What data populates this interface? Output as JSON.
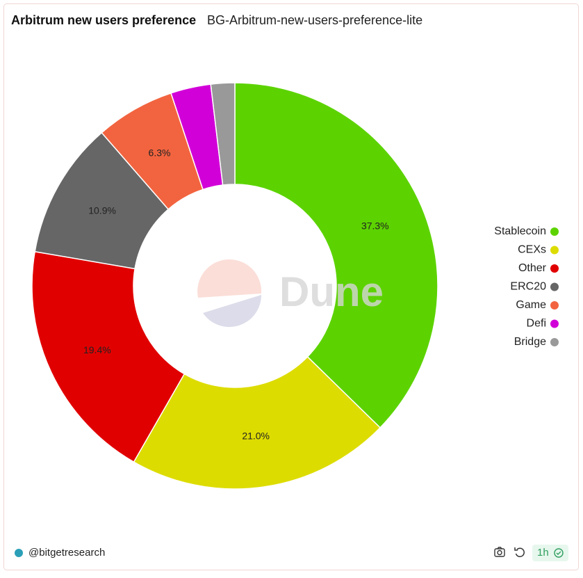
{
  "chart_data": {
    "type": "pie",
    "title": "Arbitrum new users preference",
    "subtitle": "BG-Arbitrum-new-users-preference-lite",
    "categories": [
      "Stablecoin",
      "CEXs",
      "Other",
      "ERC20",
      "Game",
      "Defi",
      "Bridge"
    ],
    "values": [
      37.3,
      21.0,
      19.4,
      10.9,
      6.3,
      3.2,
      1.9
    ],
    "value_labels": [
      "37.3%",
      "21.0%",
      "19.4%",
      "10.9%",
      "6.3%",
      null,
      null
    ],
    "colors": [
      "#5cd300",
      "#dddc00",
      "#e10000",
      "#666666",
      "#f2643f",
      "#d200d8",
      "#999999"
    ],
    "legend": "right",
    "watermark": "Dune"
  },
  "footer": {
    "author": "@bitgetresearch",
    "refresh": "1h"
  }
}
